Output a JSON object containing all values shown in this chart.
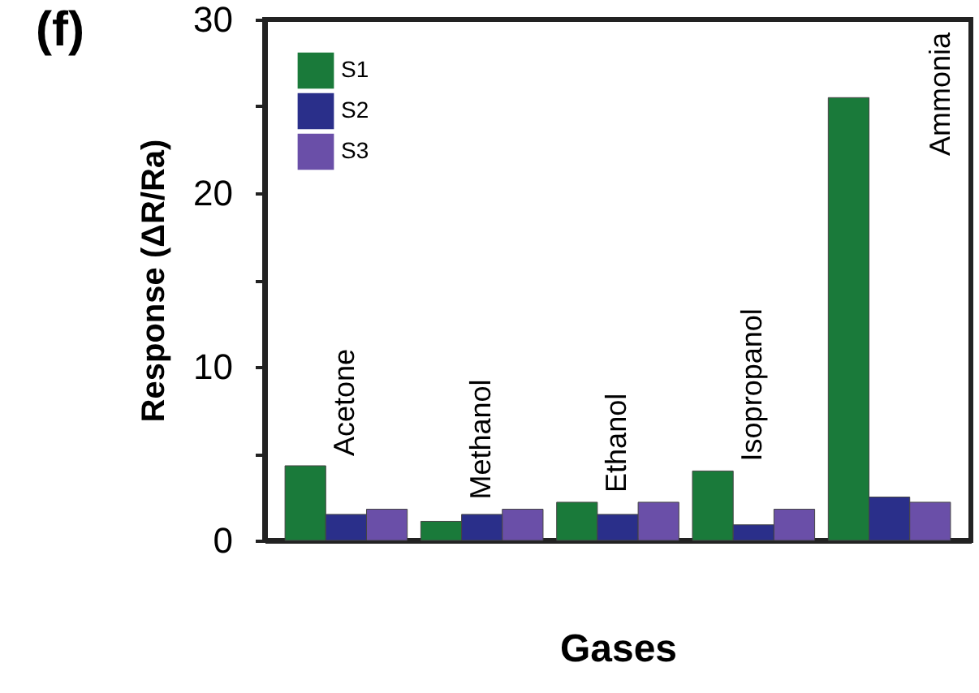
{
  "chart_data": {
    "type": "bar",
    "title": "(f)",
    "xlabel": "Gases",
    "ylabel": "Response (ΔR/Ra)",
    "categories": [
      "Acetone",
      "Methanol",
      "Ethanol",
      "Isopropanol",
      "Ammonia"
    ],
    "series": [
      {
        "name": "S1",
        "color": "#1a7a3a",
        "values": [
          4.3,
          1.1,
          2.2,
          4.0,
          25.5
        ]
      },
      {
        "name": "S2",
        "color": "#2a2f8a",
        "values": [
          1.5,
          1.5,
          1.5,
          0.9,
          2.5
        ]
      },
      {
        "name": "S3",
        "color": "#6a4fa8",
        "values": [
          1.8,
          1.8,
          2.2,
          1.8,
          2.2
        ]
      }
    ],
    "ylim": [
      0,
      30
    ],
    "yticks": [
      0,
      {
        "value": 5,
        "label": null
      },
      10,
      {
        "value": 15,
        "label": null
      },
      20,
      {
        "value": 25,
        "label": null
      },
      30
    ],
    "tick_labels": "y",
    "grid": false,
    "legend": "top left"
  }
}
